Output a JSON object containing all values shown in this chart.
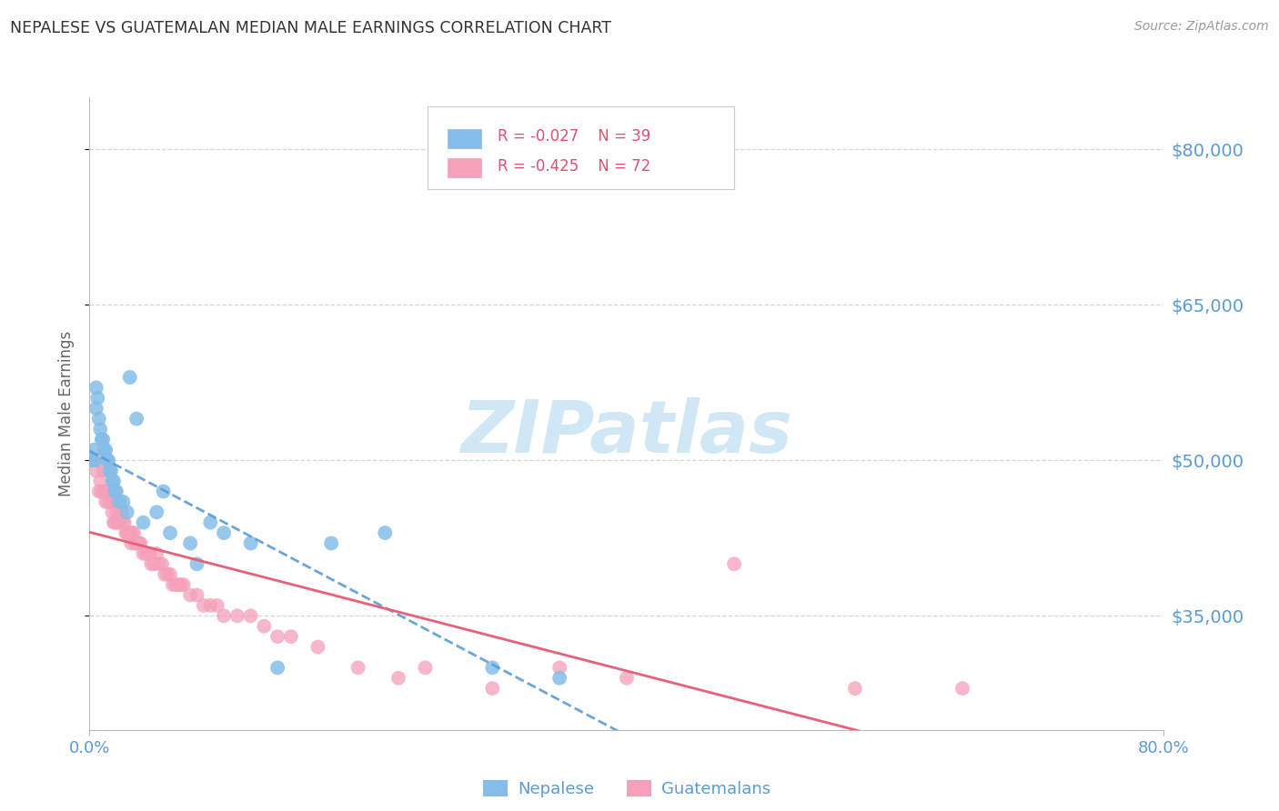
{
  "title": "NEPALESE VS GUATEMALAN MEDIAN MALE EARNINGS CORRELATION CHART",
  "source": "Source: ZipAtlas.com",
  "ylabel": "Median Male Earnings",
  "ytick_values": [
    35000,
    50000,
    65000,
    80000
  ],
  "ymin": 24000,
  "ymax": 85000,
  "xmin": 0.0,
  "xmax": 80.0,
  "nepalese_R": -0.027,
  "nepalese_N": 39,
  "guatemalan_R": -0.425,
  "guatemalan_N": 72,
  "nepalese_color": "#85BDE8",
  "guatemalan_color": "#F4A0B8",
  "trendline_blue": "#5B9BD5",
  "trendline_pink": "#E8607A",
  "background_color": "#FFFFFF",
  "grid_color": "#CCCCCC",
  "title_color": "#333333",
  "right_axis_color": "#5B9BD5",
  "bottom_axis_color": "#5B9BD5",
  "watermark_color": "#D0E8F5",
  "legend_text_color": "#E05070",
  "nepalese_x": [
    0.2,
    0.3,
    0.4,
    0.5,
    0.5,
    0.6,
    0.7,
    0.8,
    0.9,
    1.0,
    1.1,
    1.2,
    1.3,
    1.4,
    1.5,
    1.6,
    1.7,
    1.8,
    1.9,
    2.0,
    2.2,
    2.5,
    2.8,
    3.0,
    3.5,
    4.0,
    5.0,
    5.5,
    6.0,
    7.5,
    8.0,
    9.0,
    10.0,
    12.0,
    14.0,
    18.0,
    22.0,
    30.0,
    35.0
  ],
  "nepalese_y": [
    50000,
    51000,
    50000,
    55000,
    57000,
    56000,
    54000,
    53000,
    52000,
    52000,
    51000,
    51000,
    50000,
    50000,
    49000,
    49000,
    48000,
    48000,
    47000,
    47000,
    46000,
    46000,
    45000,
    58000,
    54000,
    44000,
    45000,
    47000,
    43000,
    42000,
    40000,
    44000,
    43000,
    42000,
    30000,
    42000,
    43000,
    30000,
    29000
  ],
  "guatemalan_x": [
    0.3,
    0.5,
    0.7,
    0.8,
    0.9,
    1.0,
    1.1,
    1.2,
    1.3,
    1.4,
    1.5,
    1.6,
    1.7,
    1.8,
    1.9,
    2.0,
    2.1,
    2.2,
    2.3,
    2.4,
    2.5,
    2.6,
    2.7,
    2.8,
    2.9,
    3.0,
    3.1,
    3.2,
    3.3,
    3.4,
    3.5,
    3.6,
    3.7,
    3.8,
    4.0,
    4.2,
    4.4,
    4.5,
    4.6,
    4.8,
    5.0,
    5.2,
    5.4,
    5.6,
    5.8,
    6.0,
    6.2,
    6.4,
    6.6,
    6.8,
    7.0,
    7.5,
    8.0,
    8.5,
    9.0,
    9.5,
    10.0,
    11.0,
    12.0,
    13.0,
    14.0,
    15.0,
    17.0,
    20.0,
    23.0,
    25.0,
    30.0,
    35.0,
    40.0,
    48.0,
    57.0,
    65.0
  ],
  "guatemalan_y": [
    50000,
    49000,
    47000,
    48000,
    47000,
    49000,
    47000,
    46000,
    47000,
    46000,
    47000,
    46000,
    45000,
    44000,
    44000,
    45000,
    44000,
    44000,
    45000,
    45000,
    44000,
    44000,
    43000,
    43000,
    43000,
    43000,
    42000,
    43000,
    43000,
    42000,
    42000,
    42000,
    42000,
    42000,
    41000,
    41000,
    41000,
    41000,
    40000,
    40000,
    41000,
    40000,
    40000,
    39000,
    39000,
    39000,
    38000,
    38000,
    38000,
    38000,
    38000,
    37000,
    37000,
    36000,
    36000,
    36000,
    35000,
    35000,
    35000,
    34000,
    33000,
    33000,
    32000,
    30000,
    29000,
    30000,
    28000,
    30000,
    29000,
    40000,
    28000,
    28000
  ]
}
